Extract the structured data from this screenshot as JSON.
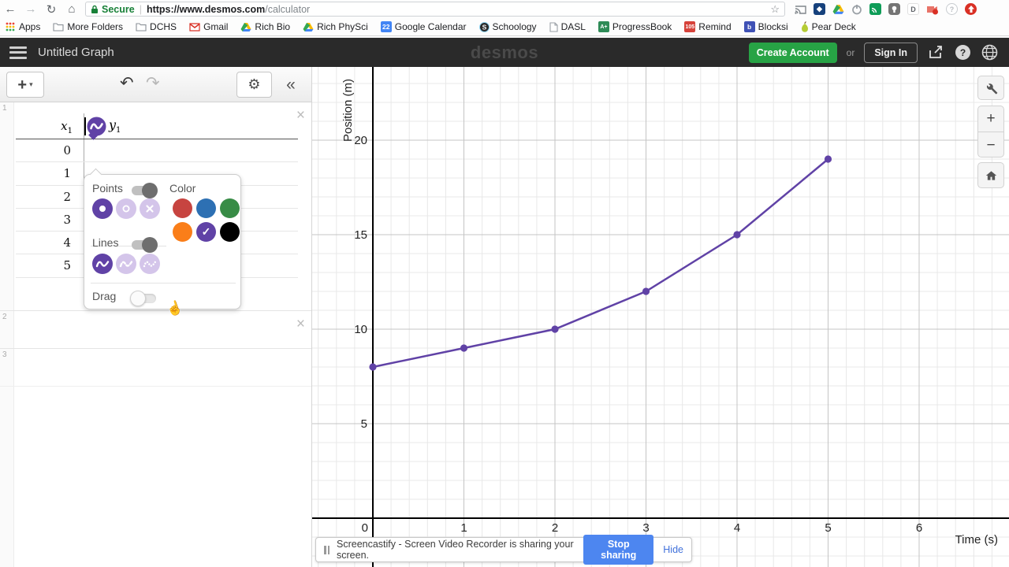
{
  "browser": {
    "nav": {
      "back": "←",
      "forward": "→",
      "refresh": "↻",
      "home": "⌂"
    },
    "address": {
      "lock_label": "Secure",
      "separator": "|",
      "url_host": "https://www.desmos.com",
      "url_path": "/calculator",
      "star": "☆"
    },
    "extensions": [
      "cast-icon",
      "diamond-extension-icon",
      "drive-extension-icon",
      "power-extension-icon",
      "green-cast-extension-icon",
      "bulb-extension-icon",
      "d-extension-icon",
      "screencastify-recording-icon",
      "help-extension-icon",
      "red-arrow-extension-icon"
    ],
    "bookmarks_bar": {
      "apps_label": "Apps",
      "items": [
        {
          "label": "More Folders",
          "icon": "folder"
        },
        {
          "label": "DCHS",
          "icon": "folder"
        },
        {
          "label": "Gmail",
          "icon": "gmail"
        },
        {
          "label": "Rich Bio",
          "icon": "drive"
        },
        {
          "label": "Rich PhySci",
          "icon": "drive"
        },
        {
          "label": "Google Calendar",
          "icon": "gcal",
          "badge": "22"
        },
        {
          "label": "Schoology",
          "icon": "schoology"
        },
        {
          "label": "DASL",
          "icon": "page"
        },
        {
          "label": "ProgressBook",
          "icon": "progressbook",
          "badge": "A+"
        },
        {
          "label": "Remind",
          "icon": "remind",
          "badge": "105"
        },
        {
          "label": "Blocksi",
          "icon": "blocksi",
          "badge": "b"
        },
        {
          "label": "Pear Deck",
          "icon": "pear"
        }
      ]
    }
  },
  "desmos_header": {
    "title": "Untitled Graph",
    "logo": "desmos",
    "create_account_label": "Create Account",
    "or_label": "or",
    "sign_in_label": "Sign In"
  },
  "expression_panel": {
    "toolbar": {
      "add_label": "+",
      "add_caret": "▾",
      "undo": "↶",
      "redo": "↷",
      "gear": "⚙",
      "collapse": "«"
    },
    "rows": [
      {
        "number": "1"
      },
      {
        "number": "2"
      },
      {
        "number": "3"
      }
    ],
    "table": {
      "header_x": "x",
      "header_x_sub": "1",
      "header_y": "y",
      "header_y_sub": "1",
      "x_values": [
        "0",
        "1",
        "2",
        "3",
        "4",
        "5"
      ]
    },
    "style_popup": {
      "points_label": "Points",
      "color_label": "Color",
      "lines_label": "Lines",
      "drag_label": "Drag",
      "points_on": true,
      "lines_on": true,
      "drag_on": false,
      "accent": "#6042a6",
      "inactive": "#d4c5ea",
      "point_styles": [
        {
          "name": "filled",
          "active": true
        },
        {
          "name": "open",
          "active": false
        },
        {
          "name": "cross",
          "active": false
        }
      ],
      "line_styles": [
        {
          "name": "solid",
          "active": true
        },
        {
          "name": "dashed",
          "active": false
        },
        {
          "name": "dotted",
          "active": false
        }
      ],
      "colors": [
        {
          "name": "red",
          "hex": "#c74440",
          "selected": false
        },
        {
          "name": "blue",
          "hex": "#2d70b3",
          "selected": false
        },
        {
          "name": "green",
          "hex": "#388c46",
          "selected": false
        },
        {
          "name": "orange",
          "hex": "#fa7e19",
          "selected": false
        },
        {
          "name": "purple",
          "hex": "#6042a6",
          "selected": true
        },
        {
          "name": "black",
          "hex": "#000000",
          "selected": false
        }
      ],
      "check_glyph": "✓"
    }
  },
  "graph_tools": {
    "zoom_in": "+",
    "zoom_out": "−"
  },
  "chart_data": {
    "type": "line",
    "series": [
      {
        "name": "table y1",
        "x": [
          0,
          1,
          2,
          3,
          4,
          5
        ],
        "y": [
          8,
          9,
          10,
          12,
          15,
          19
        ],
        "color": "#6042a6"
      }
    ],
    "title": "",
    "xlabel": "Time (s)",
    "ylabel": "Position (m)",
    "x_ticks": [
      0,
      1,
      2,
      3,
      4,
      5,
      6
    ],
    "y_ticks": [
      5,
      10,
      15,
      20
    ],
    "xlim": [
      -0.67,
      6.99
    ],
    "ylim": [
      -2.58,
      23.87
    ],
    "x_minor_step": 0.2,
    "x_major_step": 1,
    "y_minor_step": 1,
    "y_major_step": 5,
    "grid": true,
    "legend": false,
    "points_shown": true,
    "lines_shown": true
  },
  "screencastify": {
    "message": "Screencastify - Screen Video Recorder is sharing your screen.",
    "stop_label": "Stop sharing",
    "hide_label": "Hide"
  }
}
